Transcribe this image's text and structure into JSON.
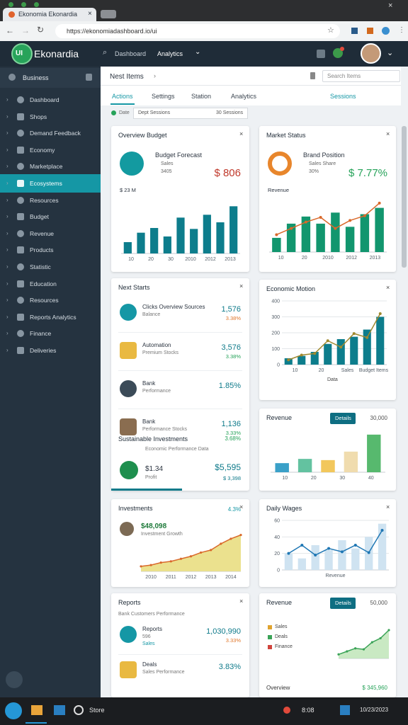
{
  "browser": {
    "tab_title": "Ekonomia Ekonardia",
    "url": "https://ekonomiadashboard.io/ui"
  },
  "header": {
    "logo": "UI",
    "brand": "Ekonardia",
    "search": "Dashboard",
    "menu": "Analytics"
  },
  "sidebar": {
    "title": "Business",
    "items": [
      "Dashboard",
      "Shops",
      "Demand Feedback",
      "Economy",
      "Marketplace",
      "Ecosystems",
      "Resources",
      "Budget",
      "Revenue",
      "Products",
      "Statistic",
      "Education",
      "Resources",
      "Reports Analytics",
      "Finance",
      "Deliveries"
    ],
    "active": 5
  },
  "toolbar": {
    "title": "Nest Items",
    "search": "Search Items",
    "tabs": [
      "Actions",
      "Settings",
      "Station",
      "Analytics"
    ],
    "active_tab": 0,
    "link": "Sessions",
    "filter_label": "Date",
    "filter": "Dept Sessions",
    "filter_count": "30 Sessions"
  },
  "widgets": [
    {
      "title": "Overview Budget",
      "kpi": {
        "title": "Budget Forecast",
        "sub": "Sales",
        "sub2": "3405",
        "value": "$ 806"
      },
      "chart": {
        "label": "$ 23 M",
        "ylim": [
          0,
          60
        ],
        "bars": {
          "color": "#0d7d8c",
          "values": [
            12,
            22,
            27,
            18,
            38,
            26,
            41,
            33,
            50
          ]
        },
        "xlabels": [
          "10",
          "20",
          "30",
          "2010",
          "2012",
          "2013"
        ]
      }
    },
    {
      "title": "Market Status",
      "kpi": {
        "title": "Brand Position",
        "sub": "Sales Share",
        "sub2": "30%",
        "value": "$ 7.77%"
      },
      "chart": {
        "label": "Revenue",
        "ylim": [
          0,
          70
        ],
        "bars": {
          "color": "#12966e",
          "values": [
            18,
            36,
            45,
            36,
            50,
            32,
            48,
            56
          ]
        },
        "line": {
          "color": "#d9692b",
          "values": [
            22,
            30,
            38,
            44,
            30,
            40,
            46,
            62
          ]
        },
        "xlabels": [
          "10",
          "20",
          "2010",
          "2012",
          "2013"
        ]
      }
    },
    {
      "title": "Next Starts",
      "items": [
        {
          "name": "Clicks Overview Sources",
          "sub": "Balance",
          "value": "1,576",
          "delta": "3.38%"
        },
        {
          "name": "Automation",
          "sub": "Premium Stocks",
          "value": "3,576",
          "delta": "3.38%"
        },
        {
          "name": "Bank",
          "sub": "Performance",
          "value": "1.85%"
        },
        {
          "name": "Bank",
          "sub": "Performance Stocks",
          "value": "1,136",
          "delta": "3.33%"
        }
      ],
      "section": {
        "title": "Sustainable Investments",
        "rate": "3.68%",
        "sub": "Economic Performance Data",
        "name": "$1.34",
        "label": "Profit",
        "value": "$5,595",
        "delta": "$ 3,398"
      }
    },
    {
      "title": "Economic Motion",
      "chart": {
        "ylim": [
          0,
          400
        ],
        "yticks": [
          0,
          100,
          200,
          300,
          400
        ],
        "bars": {
          "color": "#0d7d8c",
          "values": [
            40,
            55,
            80,
            130,
            160,
            175,
            220,
            300
          ]
        },
        "line": {
          "color": "#a0892f",
          "values": [
            30,
            60,
            70,
            150,
            110,
            195,
            170,
            320
          ]
        },
        "note": "Data",
        "xlabels": [
          "10",
          "20",
          "Sales",
          "Budget Items"
        ]
      }
    },
    {
      "title": "Revenue",
      "button": "Details",
      "total": "30,000",
      "chart": {
        "ylim": [
          0,
          70
        ],
        "bars": {
          "colors": [
            "#3aa0c8",
            "#63c2a0",
            "#f2c75c",
            "#f0dcae",
            "#57b96e"
          ],
          "values": [
            15,
            22,
            20,
            34,
            62
          ]
        },
        "xlabels": [
          "10",
          "20",
          "30",
          "40"
        ]
      }
    },
    {
      "title": "Investments",
      "rate": "4.3%",
      "kpi": {
        "value": "$48,098",
        "sub": "Investment Growth"
      },
      "chart": {
        "ylim": [
          0,
          70
        ],
        "area": {
          "color": "#d9692b",
          "fill": "#e8dc7a",
          "values": [
            8,
            10,
            14,
            16,
            20,
            24,
            30,
            34,
            44,
            52,
            58
          ]
        },
        "xlabels": [
          "2010",
          "2011",
          "2012",
          "2013",
          "2014"
        ]
      }
    },
    {
      "title": "Daily Wages",
      "chart": {
        "ylim": [
          0,
          60
        ],
        "yticks": [
          0,
          20,
          40,
          60
        ],
        "bars": {
          "color": "#cfe3f1",
          "values": [
            20,
            14,
            30,
            24,
            36,
            26,
            40,
            56
          ]
        },
        "line": {
          "color": "#1f77b4",
          "values": [
            20,
            30,
            18,
            26,
            22,
            30,
            21,
            48
          ]
        },
        "xlabels": [
          "Revenue"
        ]
      }
    },
    {
      "title": "Reports",
      "sub": "Bank Customers Performance",
      "items": [
        {
          "name": "Reports",
          "sub": "596",
          "sub2": "Sales",
          "value": "1,030,990",
          "delta": "3.33%"
        },
        {
          "name": "Deals",
          "sub": "Sales Performance",
          "value": "3.83%"
        }
      ]
    },
    {
      "title": "Revenue",
      "button": "Details",
      "total": "50,000",
      "legend": [
        {
          "name": "Sales",
          "color": "#e0a32e"
        },
        {
          "name": "Deals",
          "color": "#3aa357"
        },
        {
          "name": "Finance",
          "color": "#d0443c"
        }
      ],
      "footer": "Overview",
      "footer_value": "$ 345,960",
      "chart": {
        "ylim": [
          0,
          35
        ],
        "area": {
          "color": "#3aa357",
          "fill": "#bfe5b8",
          "values": [
            4,
            7,
            10,
            9,
            16,
            20,
            28
          ]
        }
      }
    }
  ],
  "taskbar": {
    "app": "Store",
    "time": "8:08",
    "date": "10/23/2023"
  }
}
